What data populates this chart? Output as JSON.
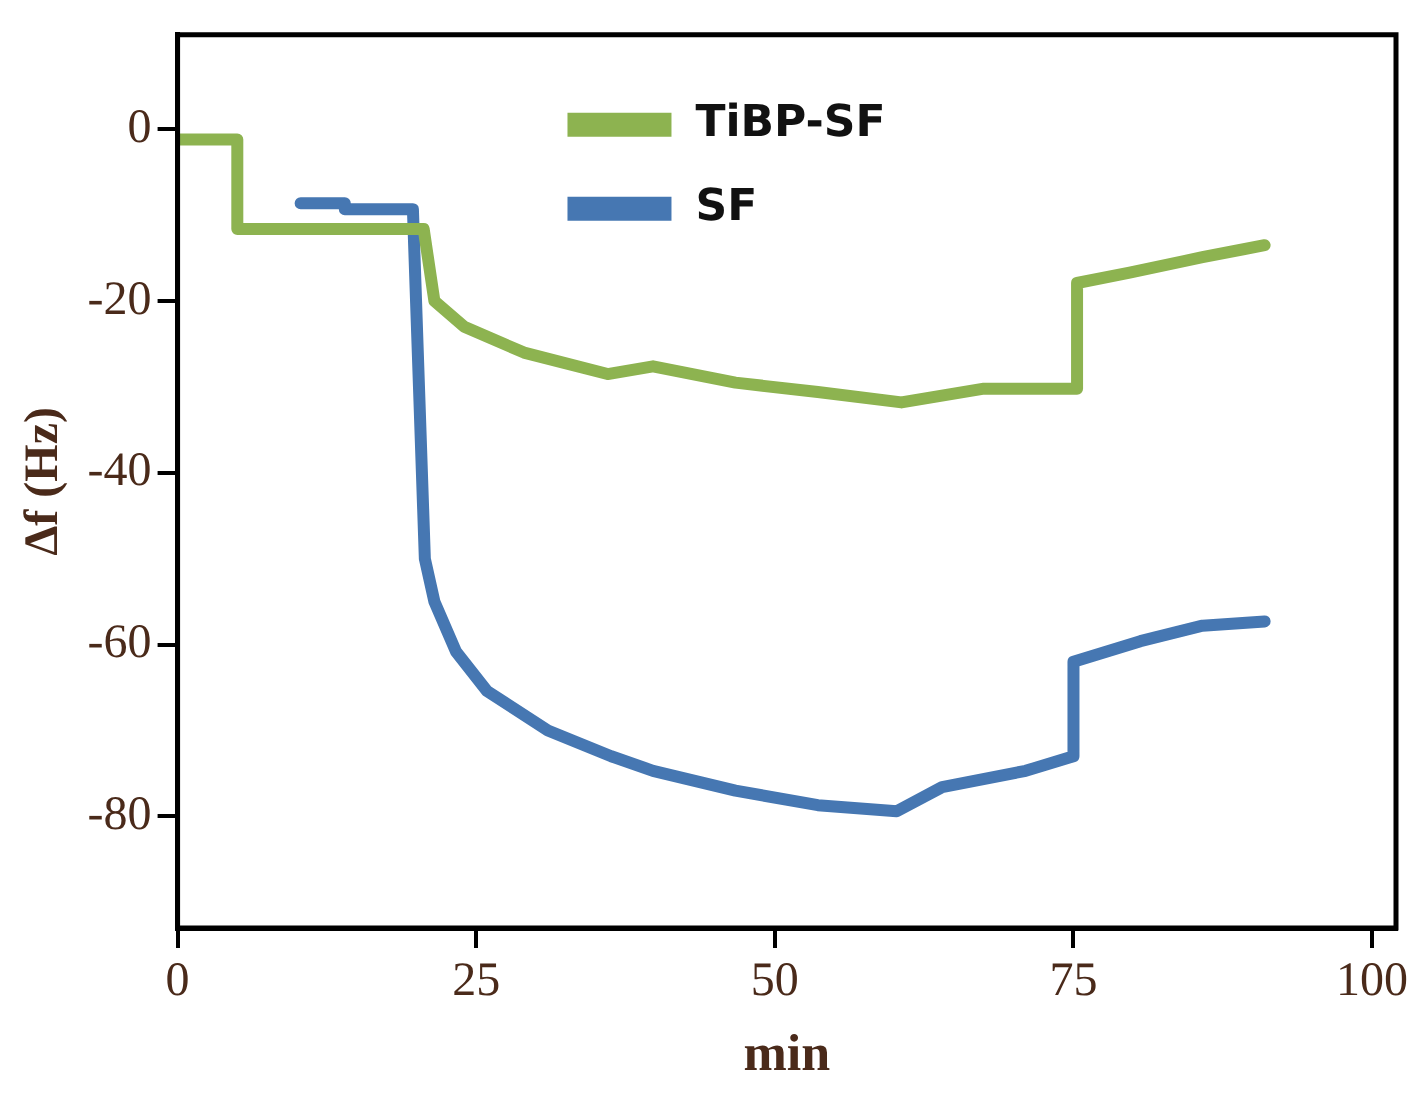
{
  "chart_data": {
    "type": "line",
    "xlabel": "min",
    "ylabel": "Δf (Hz)",
    "xlim": [
      0,
      102
    ],
    "xticks": [
      0,
      25,
      50,
      75,
      100
    ],
    "ylim": [
      -93,
      11
    ],
    "yticks": [
      0,
      -20,
      -40,
      -60,
      -80
    ],
    "grid": false,
    "legend": "top",
    "marker": "none",
    "line_style": "solid",
    "series": [
      {
        "name": "TiBP-SF",
        "color": "#8db350",
        "x": [
          0,
          5,
          5,
          20.6,
          21.5,
          24,
          29,
          36,
          39.8,
          46.7,
          53.6,
          60.6,
          67.5,
          75.3,
          75.3,
          79.7,
          85.8,
          91
        ],
        "values": [
          -1.2,
          -1.2,
          -11.6,
          -11.6,
          -20,
          -23,
          -26,
          -28.5,
          -27.6,
          -29.5,
          -30.6,
          -31.8,
          -30.2,
          -30.2,
          -17.9,
          -16.7,
          -14.9,
          -13.5
        ]
      },
      {
        "name": "SF",
        "color": "#4677b2",
        "x": [
          10.3,
          14,
          14,
          19.7,
          20.7,
          21.5,
          23.3,
          25.9,
          31,
          36.3,
          39.8,
          46.7,
          53.6,
          60.2,
          64,
          71,
          75,
          75,
          80.6,
          85.8,
          91
        ],
        "values": [
          -8.6,
          -8.6,
          -9.3,
          -9.3,
          -50,
          -55,
          -60.8,
          -65.4,
          -70,
          -73,
          -74.7,
          -77,
          -78.7,
          -79.4,
          -76.6,
          -74.7,
          -73,
          -62,
          -59.6,
          -57.8,
          -57.3
        ]
      }
    ]
  }
}
